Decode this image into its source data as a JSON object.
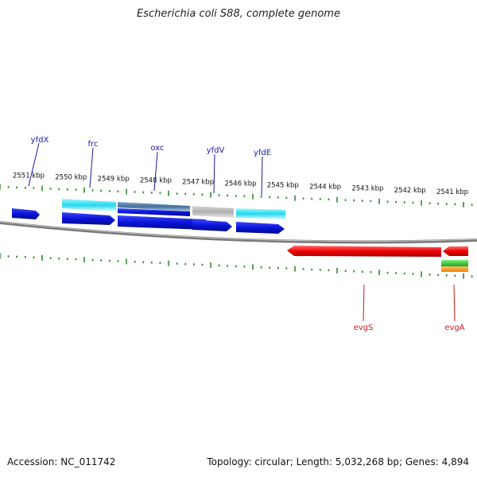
{
  "title": "Escherichia coli S88, complete genome",
  "accession": "Accession: NC_011742",
  "summary": "Topology: circular; Length: 5,032,268 bp; Genes: 4,894",
  "colors": {
    "backbone": "#7a7a7a",
    "tick": "#2e8b2e",
    "label_top": "#1a1aa8",
    "label_bottom": "#d01818"
  },
  "scale_labels": [
    "2551 kbp",
    "2550 kbp",
    "2549 kbp",
    "2548 kbp",
    "2547 kbp",
    "2546 kbp",
    "2545 kbp",
    "2544 kbp",
    "2543 kbp",
    "2542 kbp",
    "2541 kbp"
  ],
  "gene_labels_top": [
    "yfdX",
    "frc",
    "oxc",
    "yfdV",
    "yfdE"
  ],
  "gene_labels_bottom": [
    "evgS",
    "evgA"
  ]
}
